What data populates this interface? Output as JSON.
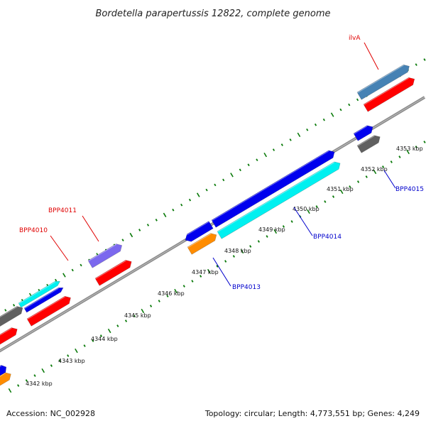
{
  "title": "Bordetella parapertussis 12822, complete genome",
  "footer": {
    "accession": "Accession: NC_002928",
    "summary": "Topology: circular; Length: 4,773,551 bp; Genes: 4,249"
  },
  "colors": {
    "backbone": "#8c8c8c",
    "tick": "#0a7a0a",
    "label_red": "#e00000",
    "label_blue": "#0000cc",
    "red": "#ff0000",
    "blue": "#0000ee",
    "cyan": "#00f0f0",
    "orange": "#ff8c00",
    "gray": "#606060",
    "steelblue": "#4682b4",
    "slate": "#7b68ee"
  },
  "scale_labels": [
    "4342 kbp",
    "4343 kbp",
    "4344 kbp",
    "4345 kbp",
    "4346 kbp",
    "4347 kbp",
    "4348 kbp",
    "4349 kbp",
    "4350 kbp",
    "4351 kbp",
    "4352 kbp",
    "4353 kbp"
  ],
  "gene_labels": [
    {
      "name": "BPP4010",
      "color": "red"
    },
    {
      "name": "BPP4011",
      "color": "red"
    },
    {
      "name": "ilvA",
      "color": "red"
    },
    {
      "name": "BPP4013",
      "color": "blue"
    },
    {
      "name": "BPP4014",
      "color": "blue"
    },
    {
      "name": "BPP4015",
      "color": "blue"
    }
  ]
}
